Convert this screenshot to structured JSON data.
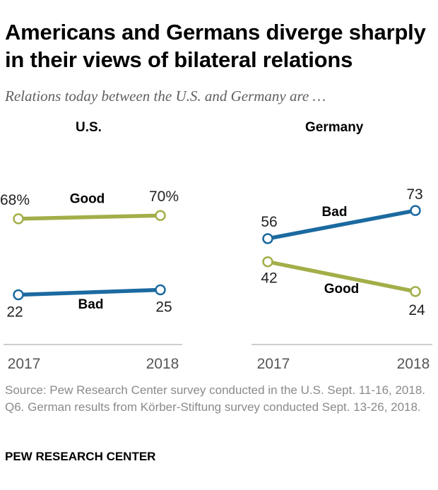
{
  "title": "Americans and Germans diverge sharply in their views of bilateral relations",
  "subtitle": "Relations today between the U.S. and Germany are …",
  "colors": {
    "good": "#a3ae49",
    "bad": "#1b6aa0",
    "axis": "#bdbdbd",
    "point_fill": "#ffffff"
  },
  "chart_data": [
    {
      "type": "line",
      "title": "U.S.",
      "x": [
        "2017",
        "2018"
      ],
      "series": [
        {
          "name": "Good",
          "values": [
            68,
            70
          ],
          "labels": [
            "68%",
            "70%"
          ]
        },
        {
          "name": "Bad",
          "values": [
            22,
            25
          ],
          "labels": [
            "22",
            "25"
          ]
        }
      ],
      "ylim": [
        0,
        100
      ]
    },
    {
      "type": "line",
      "title": "Germany",
      "x": [
        "2017",
        "2018"
      ],
      "series": [
        {
          "name": "Bad",
          "values": [
            56,
            73
          ],
          "labels": [
            "56",
            "73"
          ]
        },
        {
          "name": "Good",
          "values": [
            42,
            24
          ],
          "labels": [
            "42",
            "24"
          ]
        }
      ],
      "ylim": [
        0,
        100
      ]
    }
  ],
  "footnote": "Source: Pew Research Center survey conducted in the U.S. Sept. 11-16, 2018. Q6. German results from Körber-Stiftung survey conducted Sept. 13-26, 2018.",
  "source_org": "PEW RESEARCH CENTER"
}
